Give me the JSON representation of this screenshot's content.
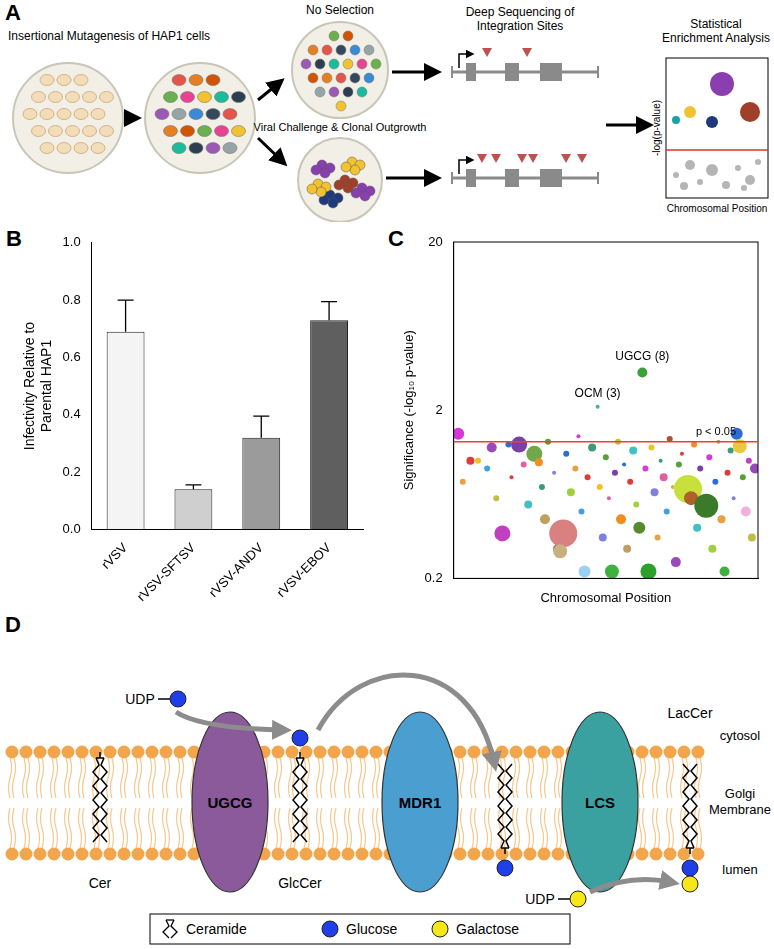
{
  "panel_letters": [
    "A",
    "B",
    "C",
    "D"
  ],
  "panel_a": {
    "steps": [
      [
        "Insertional Mutagenesis of HAP1 cells"
      ],
      [
        "No Selection"
      ],
      [
        "Viral Challenge & Clonal Outgrowth"
      ],
      [
        "Deep Sequencing of",
        "Integration Sites"
      ],
      [
        "Statistical",
        "Enrichment Analysis"
      ]
    ],
    "plot_axis_labels": {
      "y": "-log(p-value)",
      "x": "Chromosomal Position"
    }
  },
  "chart_data": [
    {
      "type": "bar",
      "categories": [
        "rVSV",
        "rVSV-SFTSV",
        "rVSV-ANDV",
        "rVSV-EBOV"
      ],
      "values": [
        0.69,
        0.14,
        0.32,
        0.73
      ],
      "errors": [
        0.11,
        0.015,
        0.075,
        0.065
      ],
      "colors": [
        "#f4f4f4",
        "#cfcfcf",
        "#9b9b9b",
        "#5f5f5f"
      ],
      "ylabel": [
        "Infectivity Relative to",
        "Parental HAP1"
      ],
      "ylim": [
        0,
        1
      ],
      "yticks": [
        {
          "value": 0,
          "label": "0.0"
        },
        0.2,
        0.4,
        0.6,
        0.8,
        {
          "value": 1,
          "label": "1.0"
        }
      ],
      "grid": false
    },
    {
      "type": "bubble",
      "xlabel": "Chromosomal Position",
      "ylabel": "Significance (-log₁₀ p-value)",
      "log": "y",
      "xlim": [
        0,
        100
      ],
      "ylim": [
        0.2,
        20
      ],
      "yticks": [
        0.2,
        2,
        20
      ],
      "tick_labels": "y",
      "grid": false,
      "threshold": {
        "value": 1.3,
        "label": "p < 0.05",
        "color": "#e8432e"
      },
      "points": [
        {
          "x": 1.5,
          "y": 1.45,
          "size": 6,
          "color": "#d63ad6"
        },
        {
          "x": 3,
          "y": 0.75,
          "size": 3,
          "color": "#e8a040"
        },
        {
          "x": 5.5,
          "y": 1.0,
          "size": 4,
          "color": "#e03a3a"
        },
        {
          "x": 8,
          "y": 1.0,
          "size": 3,
          "color": "#f0c020"
        },
        {
          "x": 11,
          "y": 0.9,
          "size": 3,
          "color": "#40a0e0"
        },
        {
          "x": 12.5,
          "y": 1.2,
          "size": 5,
          "color": "#9a4ab8"
        },
        {
          "x": 14,
          "y": 0.6,
          "size": 3,
          "color": "#c0c040"
        },
        {
          "x": 16,
          "y": 0.37,
          "size": 8,
          "color": "#c040c0"
        },
        {
          "x": 18,
          "y": 1.25,
          "size": 3,
          "color": "#2a6fd6"
        },
        {
          "x": 19,
          "y": 0.8,
          "size": 2,
          "color": "#e03a3a"
        },
        {
          "x": 21.5,
          "y": 1.25,
          "size": 8,
          "color": "#7b3fa8"
        },
        {
          "x": 23,
          "y": 0.95,
          "size": 3,
          "color": "#e060a0"
        },
        {
          "x": 24.5,
          "y": 0.55,
          "size": 4,
          "color": "#40c0c0"
        },
        {
          "x": 26.5,
          "y": 1.1,
          "size": 8,
          "color": "#6fa84a"
        },
        {
          "x": 28,
          "y": 0.98,
          "size": 4,
          "color": "#f08c20"
        },
        {
          "x": 29,
          "y": 0.7,
          "size": 3,
          "color": "#3a9a7a"
        },
        {
          "x": 30,
          "y": 0.45,
          "size": 5,
          "color": "#c0a060"
        },
        {
          "x": 31,
          "y": 1.3,
          "size": 3,
          "color": "#5aa03a"
        },
        {
          "x": 33,
          "y": 0.85,
          "size": 2,
          "color": "#8080e0"
        },
        {
          "x": 34,
          "y": 0.3,
          "size": 4,
          "color": "#b05030"
        },
        {
          "x": 36,
          "y": 0.37,
          "size": 14,
          "color": "#d98080"
        },
        {
          "x": 35,
          "y": 0.29,
          "size": 7,
          "color": "#c8b080"
        },
        {
          "x": 37,
          "y": 1.1,
          "size": 3,
          "color": "#2a6fd6"
        },
        {
          "x": 38.5,
          "y": 0.65,
          "size": 4,
          "color": "#a0d040"
        },
        {
          "x": 40,
          "y": 0.9,
          "size": 3,
          "color": "#e8a040"
        },
        {
          "x": 41,
          "y": 1.4,
          "size": 2,
          "color": "#d63ad6"
        },
        {
          "x": 42,
          "y": 0.5,
          "size": 3,
          "color": "#40a0e0"
        },
        {
          "x": 43,
          "y": 0.22,
          "size": 6,
          "color": "#9ad0f0"
        },
        {
          "x": 44,
          "y": 0.8,
          "size": 3,
          "color": "#e03a3a"
        },
        {
          "x": 45.5,
          "y": 1.2,
          "size": 4,
          "color": "#3a9a7a"
        },
        {
          "x": 47.3,
          "y": 2.1,
          "size": 2,
          "color": "#40b0a0",
          "label": "OCM (3)"
        },
        {
          "x": 48,
          "y": 0.7,
          "size": 3,
          "color": "#f0c020"
        },
        {
          "x": 49,
          "y": 0.35,
          "size": 4,
          "color": "#8080e0"
        },
        {
          "x": 50,
          "y": 1.05,
          "size": 3,
          "color": "#5aa03a"
        },
        {
          "x": 51,
          "y": 0.6,
          "size": 2,
          "color": "#e060a0"
        },
        {
          "x": 52,
          "y": 0.22,
          "size": 7,
          "color": "#40b040"
        },
        {
          "x": 53,
          "y": 0.85,
          "size": 3,
          "color": "#7b3fa8"
        },
        {
          "x": 54,
          "y": 1.3,
          "size": 3,
          "color": "#c0c040"
        },
        {
          "x": 55,
          "y": 0.45,
          "size": 5,
          "color": "#f08c20"
        },
        {
          "x": 56,
          "y": 0.95,
          "size": 2,
          "color": "#2a6fd6"
        },
        {
          "x": 57,
          "y": 0.3,
          "size": 4,
          "color": "#c0a060"
        },
        {
          "x": 58,
          "y": 0.75,
          "size": 3,
          "color": "#e03a3a"
        },
        {
          "x": 59,
          "y": 1.15,
          "size": 4,
          "color": "#40c0c0"
        },
        {
          "x": 60,
          "y": 0.55,
          "size": 3,
          "color": "#a0d040"
        },
        {
          "x": 62,
          "y": 3.35,
          "size": 5,
          "color": "#3aa03a",
          "label": "UGCG (8)"
        },
        {
          "x": 61,
          "y": 0.4,
          "size": 6,
          "color": "#5a8a30"
        },
        {
          "x": 63,
          "y": 0.9,
          "size": 3,
          "color": "#d63ad6"
        },
        {
          "x": 64,
          "y": 0.22,
          "size": 8,
          "color": "#2ca02c"
        },
        {
          "x": 65,
          "y": 1.2,
          "size": 3,
          "color": "#f0c020"
        },
        {
          "x": 66,
          "y": 0.65,
          "size": 4,
          "color": "#8080e0"
        },
        {
          "x": 67,
          "y": 0.35,
          "size": 3,
          "color": "#e8a040"
        },
        {
          "x": 68,
          "y": 1.0,
          "size": 2,
          "color": "#3a9a7a"
        },
        {
          "x": 69,
          "y": 0.8,
          "size": 4,
          "color": "#e060a0"
        },
        {
          "x": 70,
          "y": 0.5,
          "size": 3,
          "color": "#40a0e0"
        },
        {
          "x": 71,
          "y": 1.35,
          "size": 3,
          "color": "#b05030"
        },
        {
          "x": 72,
          "y": 0.7,
          "size": 2,
          "color": "#c0c040"
        },
        {
          "x": 73,
          "y": 0.25,
          "size": 5,
          "color": "#9a4ab8"
        },
        {
          "x": 74,
          "y": 0.95,
          "size": 3,
          "color": "#5aa03a"
        },
        {
          "x": 75,
          "y": 1.1,
          "size": 2,
          "color": "#e03a3a"
        },
        {
          "x": 77,
          "y": 0.68,
          "size": 14,
          "color": "#c8e03c"
        },
        {
          "x": 78,
          "y": 0.6,
          "size": 7,
          "color": "#b0602a"
        },
        {
          "x": 79,
          "y": 1.25,
          "size": 3,
          "color": "#f08c20"
        },
        {
          "x": 80,
          "y": 0.4,
          "size": 4,
          "color": "#40c0c0"
        },
        {
          "x": 81,
          "y": 0.9,
          "size": 3,
          "color": "#7b3fa8"
        },
        {
          "x": 83,
          "y": 0.54,
          "size": 12,
          "color": "#3a7a2a"
        },
        {
          "x": 84,
          "y": 1.05,
          "size": 3,
          "color": "#d63ad6"
        },
        {
          "x": 85,
          "y": 0.3,
          "size": 4,
          "color": "#a0d040"
        },
        {
          "x": 86,
          "y": 0.75,
          "size": 3,
          "color": "#2a6fd6"
        },
        {
          "x": 87,
          "y": 1.3,
          "size": 2,
          "color": "#c0a060"
        },
        {
          "x": 88,
          "y": 0.45,
          "size": 4,
          "color": "#e8a040"
        },
        {
          "x": 89,
          "y": 0.22,
          "size": 5,
          "color": "#40b040"
        },
        {
          "x": 90,
          "y": 0.85,
          "size": 3,
          "color": "#e03a3a"
        },
        {
          "x": 91,
          "y": 1.15,
          "size": 3,
          "color": "#3a9a7a"
        },
        {
          "x": 92,
          "y": 0.6,
          "size": 2,
          "color": "#8080e0"
        },
        {
          "x": 93,
          "y": 1.45,
          "size": 6,
          "color": "#2d6bd9"
        },
        {
          "x": 94,
          "y": 1.22,
          "size": 7,
          "color": "#e8c840"
        },
        {
          "x": 95,
          "y": 0.8,
          "size": 3,
          "color": "#5aa03a"
        },
        {
          "x": 96,
          "y": 0.5,
          "size": 5,
          "color": "#f0b0e0"
        },
        {
          "x": 97,
          "y": 1.0,
          "size": 3,
          "color": "#c040c0"
        },
        {
          "x": 98,
          "y": 0.35,
          "size": 4,
          "color": "#c0c040"
        },
        {
          "x": 99,
          "y": 0.9,
          "size": 5,
          "color": "#9a4ab8"
        }
      ]
    }
  ],
  "panel_d": {
    "enzymes": [
      "UGCG",
      "MDR1",
      "LCS"
    ],
    "lipids": [
      "Cer",
      "GlcCer",
      "LacCer"
    ],
    "donor": "UDP",
    "compartments": [
      [
        "cytosol"
      ],
      [
        "Golgi",
        "Membrane"
      ],
      [
        "lumen"
      ]
    ],
    "legend": [
      {
        "label": "Ceramide",
        "symbol": "ceramide"
      },
      {
        "label": "Glucose",
        "color": "#1f40e8"
      },
      {
        "label": "Galactose",
        "color": "#f7e718"
      }
    ]
  }
}
